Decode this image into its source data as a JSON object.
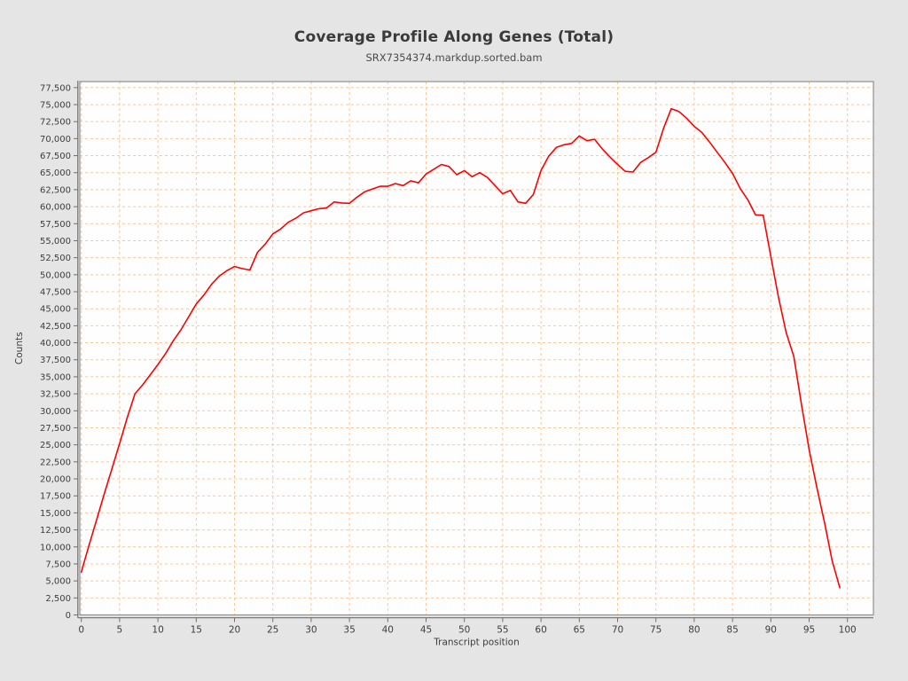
{
  "chart": {
    "title": "Coverage Profile Along Genes (Total)",
    "subtitle": "SRX7354374.markdup.sorted.bam"
  },
  "colors": {
    "page_background": "#e5e5e5",
    "plot_background": "#fefefe",
    "grid": "#f3c9a2",
    "frame": "#8f8f8f",
    "axis_line": "#6e6e6e",
    "tick_text": "#3d3d3d",
    "line": "#ff0000"
  },
  "chart_data": {
    "type": "line",
    "title": "Coverage Profile Along Genes (Total)",
    "subtitle": "SRX7354374.markdup.sorted.bam",
    "xlabel": "Transcript position",
    "ylabel": "Counts",
    "xlim": [
      -0.2,
      103.4
    ],
    "ylim": [
      0,
      78400
    ],
    "xtick_step": 5,
    "xtick_max": 100,
    "ytick_step": 2500,
    "ytick_max": 77500,
    "grid": "dashed",
    "legend_position": "none",
    "series": [
      {
        "name": "SRX7354374.markdup.sorted.bam",
        "color": "#ff0000",
        "points": [
          [
            0,
            6300
          ],
          [
            1,
            10200
          ],
          [
            2,
            14000
          ],
          [
            3,
            17800
          ],
          [
            4,
            21500
          ],
          [
            5,
            25200
          ],
          [
            6,
            29000
          ],
          [
            7,
            32500
          ],
          [
            8,
            33800
          ],
          [
            9,
            35300
          ],
          [
            10,
            36800
          ],
          [
            11,
            38400
          ],
          [
            12,
            40300
          ],
          [
            13,
            41900
          ],
          [
            14,
            43800
          ],
          [
            15,
            45700
          ],
          [
            16,
            47000
          ],
          [
            17,
            48600
          ],
          [
            18,
            49800
          ],
          [
            19,
            50600
          ],
          [
            20,
            51200
          ],
          [
            21,
            50900
          ],
          [
            22,
            50700
          ],
          [
            23,
            53300
          ],
          [
            24,
            54500
          ],
          [
            25,
            56000
          ],
          [
            26,
            56700
          ],
          [
            27,
            57700
          ],
          [
            28,
            58300
          ],
          [
            29,
            59100
          ],
          [
            30,
            59400
          ],
          [
            31,
            59700
          ],
          [
            32,
            59800
          ],
          [
            33,
            60700
          ],
          [
            34,
            60550
          ],
          [
            35,
            60500
          ],
          [
            36,
            61400
          ],
          [
            37,
            62200
          ],
          [
            38,
            62600
          ],
          [
            39,
            63000
          ],
          [
            40,
            63000
          ],
          [
            41,
            63400
          ],
          [
            42,
            63100
          ],
          [
            43,
            63800
          ],
          [
            44,
            63500
          ],
          [
            45,
            64800
          ],
          [
            46,
            65500
          ],
          [
            47,
            66200
          ],
          [
            48,
            65900
          ],
          [
            49,
            64700
          ],
          [
            50,
            65300
          ],
          [
            51,
            64400
          ],
          [
            52,
            65000
          ],
          [
            53,
            64300
          ],
          [
            54,
            63100
          ],
          [
            55,
            61900
          ],
          [
            56,
            62400
          ],
          [
            57,
            60700
          ],
          [
            58,
            60500
          ],
          [
            59,
            61800
          ],
          [
            60,
            65300
          ],
          [
            61,
            67400
          ],
          [
            62,
            68700
          ],
          [
            63,
            69100
          ],
          [
            64,
            69300
          ],
          [
            65,
            70400
          ],
          [
            66,
            69700
          ],
          [
            67,
            69900
          ],
          [
            68,
            68500
          ],
          [
            69,
            67300
          ],
          [
            70,
            66200
          ],
          [
            71,
            65200
          ],
          [
            72,
            65100
          ],
          [
            73,
            66500
          ],
          [
            74,
            67200
          ],
          [
            75,
            68000
          ],
          [
            76,
            71500
          ],
          [
            77,
            74400
          ],
          [
            78,
            74000
          ],
          [
            79,
            73000
          ],
          [
            80,
            71800
          ],
          [
            81,
            70900
          ],
          [
            82,
            69500
          ],
          [
            83,
            68000
          ],
          [
            84,
            66500
          ],
          [
            85,
            64900
          ],
          [
            86,
            62700
          ],
          [
            87,
            61000
          ],
          [
            88,
            58800
          ],
          [
            89,
            58750
          ],
          [
            90,
            52700
          ],
          [
            91,
            46700
          ],
          [
            92,
            41500
          ],
          [
            93,
            38000
          ],
          [
            94,
            30900
          ],
          [
            95,
            24300
          ],
          [
            96,
            18800
          ],
          [
            97,
            13600
          ],
          [
            98,
            8000
          ],
          [
            99,
            4000
          ]
        ]
      }
    ]
  }
}
